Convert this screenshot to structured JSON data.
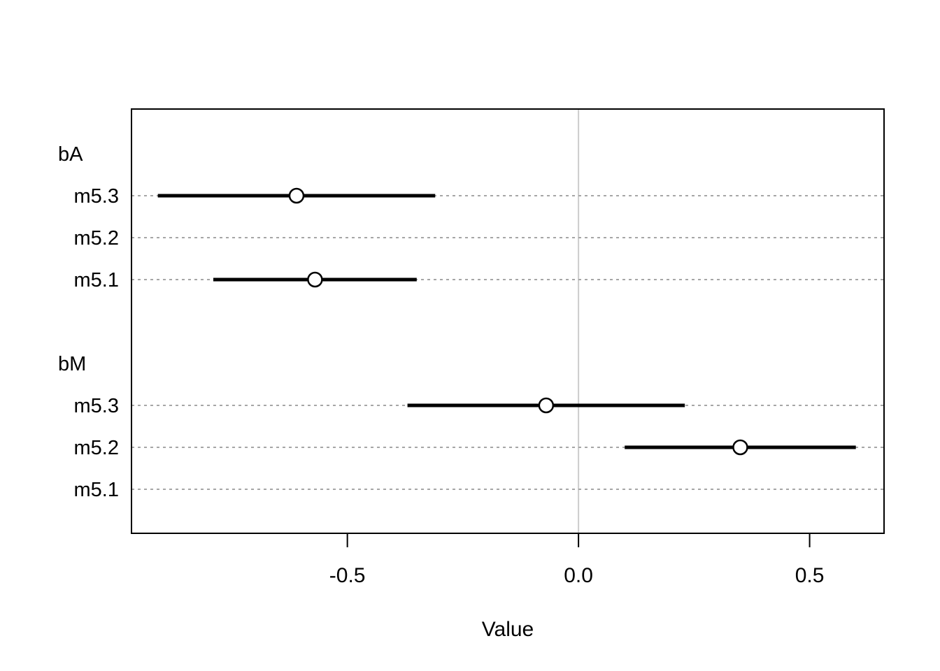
{
  "chart_data": {
    "type": "scatter",
    "subtype": "coefficient-interval-plot",
    "title": "",
    "xlabel": "Value",
    "ylabel": "",
    "xlim": [
      -0.967,
      0.661
    ],
    "x_ticks": [
      -0.5,
      0.0,
      0.5
    ],
    "x_tick_labels": [
      "-0.5",
      "0.0",
      "0.5"
    ],
    "grid": "dashed-horizontal",
    "zero_line": true,
    "legend": "none",
    "rows": [
      {
        "kind": "group",
        "label": "bA"
      },
      {
        "kind": "estimate",
        "label": "m5.3",
        "mean": -0.61,
        "lo": -0.91,
        "hi": -0.31
      },
      {
        "kind": "empty",
        "label": "m5.2"
      },
      {
        "kind": "estimate",
        "label": "m5.1",
        "mean": -0.57,
        "lo": -0.79,
        "hi": -0.35
      },
      {
        "kind": "spacer",
        "label": ""
      },
      {
        "kind": "group",
        "label": "bM"
      },
      {
        "kind": "estimate",
        "label": "m5.3",
        "mean": -0.07,
        "lo": -0.37,
        "hi": 0.23
      },
      {
        "kind": "estimate",
        "label": "m5.2",
        "mean": 0.35,
        "lo": 0.1,
        "hi": 0.6
      },
      {
        "kind": "empty",
        "label": "m5.1"
      }
    ],
    "colors": {
      "point": "#000000",
      "interval": "#000000",
      "grid": "#a6a6a6",
      "zero_line": "#cccccc",
      "border": "#000000",
      "text": "#000000",
      "point_fill": "#ffffff",
      "background": "#ffffff"
    }
  }
}
